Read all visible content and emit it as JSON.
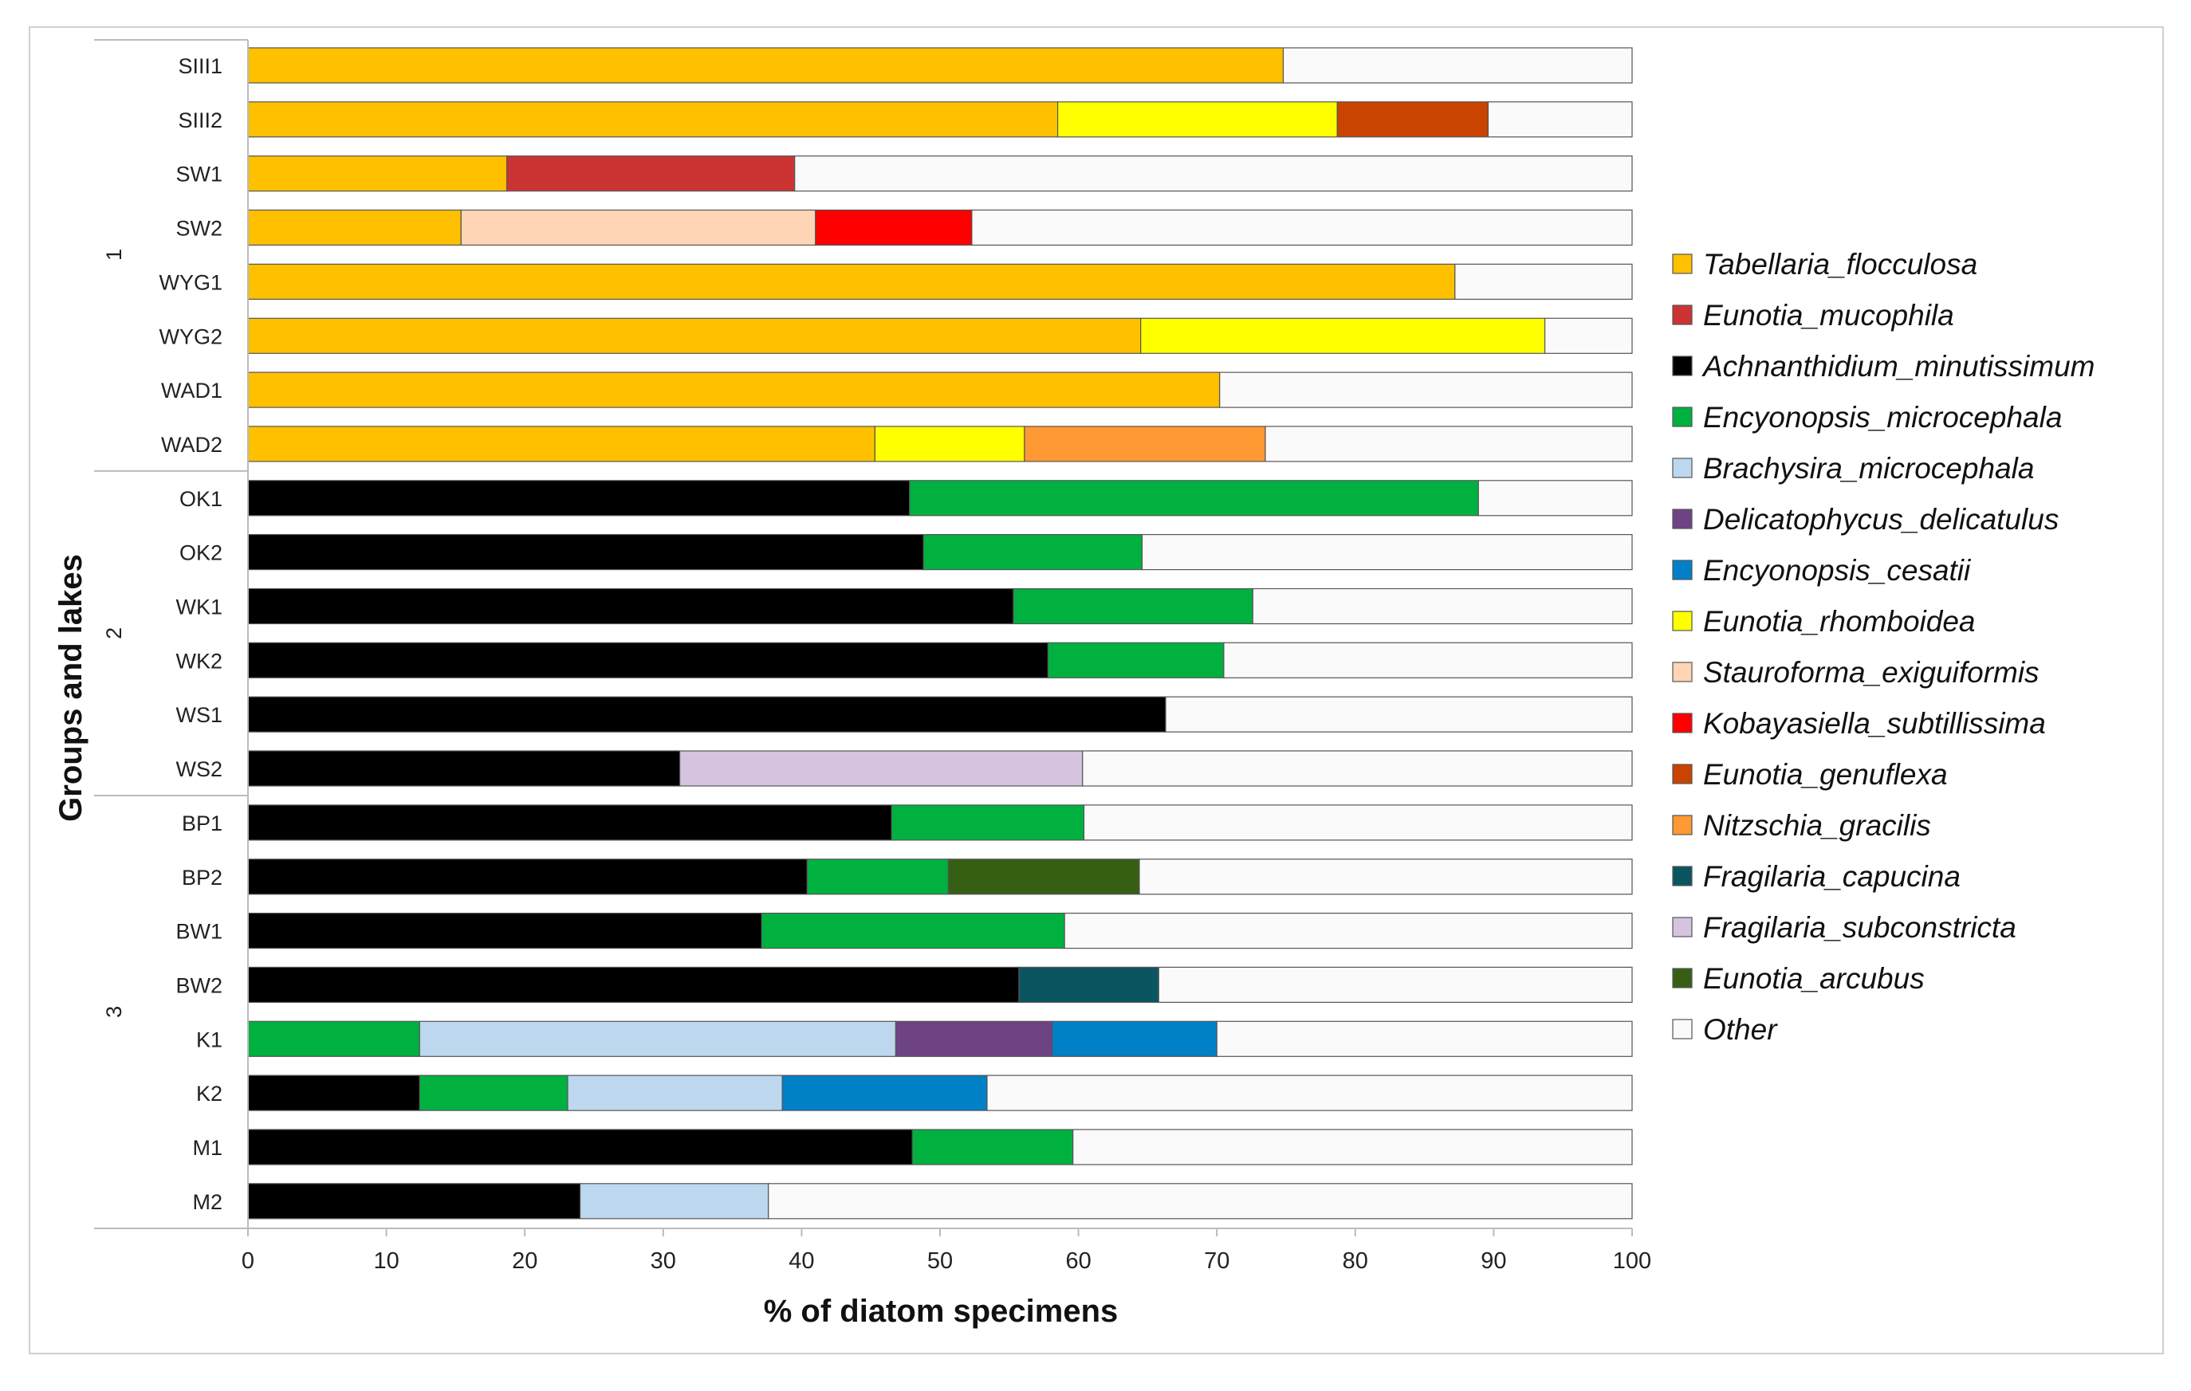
{
  "chart_data": {
    "type": "bar",
    "orientation": "horizontal",
    "stacked": true,
    "xlabel": "% of diatom specimens",
    "ylabel": "Groups and lakes",
    "xlim": [
      0,
      100
    ],
    "xticks": [
      "0",
      "10",
      "20",
      "30",
      "40",
      "50",
      "60",
      "70",
      "80",
      "90",
      "100"
    ],
    "grid": false,
    "legend_position": "right",
    "groups": [
      {
        "name": "1",
        "categories": [
          "SIII1",
          "SIII2",
          "SW1",
          "SW2",
          "WYG1",
          "WYG2",
          "WAD1",
          "WAD2"
        ]
      },
      {
        "name": "2",
        "categories": [
          "OK1",
          "OK2",
          "WK1",
          "WK2",
          "WS1",
          "WS2"
        ]
      },
      {
        "name": "3",
        "categories": [
          "BP1",
          "BP2",
          "BW1",
          "BW2",
          "K1",
          "K2",
          "M1",
          "M2"
        ]
      }
    ],
    "categories": [
      "SIII1",
      "SIII2",
      "SW1",
      "SW2",
      "WYG1",
      "WYG2",
      "WAD1",
      "WAD2",
      "OK1",
      "OK2",
      "WK1",
      "WK2",
      "WS1",
      "WS2",
      "BP1",
      "BP2",
      "BW1",
      "BW2",
      "K1",
      "K2",
      "M1",
      "M2"
    ],
    "series": [
      {
        "name": "Tabellaria_flocculosa",
        "color": "#FFC000",
        "values": [
          74.8,
          58.5,
          18.7,
          15.4,
          87.2,
          64.5,
          70.2,
          45.3,
          0,
          0,
          0,
          0,
          0,
          0,
          0,
          0,
          0,
          0,
          0,
          0,
          0,
          0
        ]
      },
      {
        "name": "Eunotia_mucophila",
        "color": "#CC3333",
        "values": [
          0,
          0,
          20.8,
          0,
          0,
          0,
          0,
          0,
          0,
          0,
          0,
          0,
          0,
          0,
          0,
          0,
          0,
          0,
          0,
          0,
          0,
          0
        ]
      },
      {
        "name": "Achnanthidium_minutissimum",
        "color": "#000000",
        "values": [
          0,
          0,
          0,
          0,
          0,
          0,
          0,
          0,
          47.8,
          48.8,
          55.3,
          57.8,
          66.3,
          31.2,
          46.5,
          40.4,
          37.1,
          55.7,
          0,
          12.4,
          48.0,
          24.0
        ]
      },
      {
        "name": "Encyonopsis_microcephala",
        "color": "#00B140",
        "values": [
          0,
          0,
          0,
          0,
          0,
          0,
          0,
          0,
          41.1,
          15.8,
          17.3,
          12.7,
          0,
          0,
          13.9,
          10.2,
          21.9,
          0,
          12.4,
          10.7,
          11.6,
          0
        ]
      },
      {
        "name": "Brachysira_microcephala",
        "color": "#BDD7EE",
        "values": [
          0,
          0,
          0,
          0,
          0,
          0,
          0,
          0,
          0,
          0,
          0,
          0,
          0,
          0,
          0,
          0,
          0,
          0,
          34.4,
          15.5,
          0,
          13.6
        ]
      },
      {
        "name": "Delicatophycus_delicatulus",
        "color": "#6E4383",
        "values": [
          0,
          0,
          0,
          0,
          0,
          0,
          0,
          0,
          0,
          0,
          0,
          0,
          0,
          0,
          0,
          0,
          0,
          0,
          11.3,
          0,
          0,
          0
        ]
      },
      {
        "name": "Encyonopsis_cesatii",
        "color": "#0080C6",
        "values": [
          0,
          0,
          0,
          0,
          0,
          0,
          0,
          0,
          0,
          0,
          0,
          0,
          0,
          0,
          0,
          0,
          0,
          0,
          11.9,
          14.8,
          0,
          0
        ]
      },
      {
        "name": "Eunotia_rhomboidea",
        "color": "#FFFF00",
        "values": [
          0,
          20.2,
          0,
          0,
          0,
          29.2,
          0,
          10.8,
          0,
          0,
          0,
          0,
          0,
          0,
          0,
          0,
          0,
          0,
          0,
          0,
          0,
          0
        ]
      },
      {
        "name": "Stauroforma_exiguiformis",
        "color": "#FFD5B5",
        "values": [
          0,
          0,
          0,
          25.6,
          0,
          0,
          0,
          0,
          0,
          0,
          0,
          0,
          0,
          0,
          0,
          0,
          0,
          0,
          0,
          0,
          0,
          0
        ]
      },
      {
        "name": "Kobayasiella_subtillissima",
        "color": "#FF0000",
        "values": [
          0,
          0,
          0,
          11.3,
          0,
          0,
          0,
          0,
          0,
          0,
          0,
          0,
          0,
          0,
          0,
          0,
          0,
          0,
          0,
          0,
          0,
          0
        ]
      },
      {
        "name": "Eunotia_genuflexa",
        "color": "#C84400",
        "values": [
          0,
          10.9,
          0,
          0,
          0,
          0,
          0,
          0,
          0,
          0,
          0,
          0,
          0,
          0,
          0,
          0,
          0,
          0,
          0,
          0,
          0,
          0
        ]
      },
      {
        "name": "Nitzschia_gracilis",
        "color": "#FF9933",
        "values": [
          0,
          0,
          0,
          0,
          0,
          0,
          0,
          17.4,
          0,
          0,
          0,
          0,
          0,
          0,
          0,
          0,
          0,
          0,
          0,
          0,
          0,
          0
        ]
      },
      {
        "name": "Fragilaria_capucina",
        "color": "#0B5560",
        "values": [
          0,
          0,
          0,
          0,
          0,
          0,
          0,
          0,
          0,
          0,
          0,
          0,
          0,
          0,
          0,
          0,
          0,
          10.1,
          0,
          0,
          0,
          0
        ]
      },
      {
        "name": "Fragilaria_subconstricta",
        "color": "#D5C3DF",
        "values": [
          0,
          0,
          0,
          0,
          0,
          0,
          0,
          0,
          0,
          0,
          0,
          0,
          0,
          29.1,
          0,
          0,
          0,
          0,
          0,
          0,
          0,
          0
        ]
      },
      {
        "name": "Eunotia_arcubus",
        "color": "#375F14",
        "values": [
          0,
          0,
          0,
          0,
          0,
          0,
          0,
          0,
          0,
          0,
          0,
          0,
          0,
          0,
          0,
          13.8,
          0,
          0,
          0,
          0,
          0,
          0
        ]
      },
      {
        "name": "Other",
        "color": "#FAFAFA",
        "values": [
          25.2,
          10.4,
          60.5,
          47.7,
          12.8,
          6.3,
          29.8,
          26.5,
          11.1,
          35.4,
          27.4,
          29.5,
          33.7,
          39.7,
          39.6,
          35.6,
          41.0,
          34.2,
          30.0,
          46.6,
          40.4,
          62.4
        ]
      }
    ],
    "segment_order": [
      [
        0,
        15
      ],
      [
        0,
        7,
        10,
        15
      ],
      [
        0,
        1,
        15
      ],
      [
        0,
        8,
        9,
        15
      ],
      [
        0,
        15
      ],
      [
        0,
        7,
        15
      ],
      [
        0,
        15
      ],
      [
        0,
        7,
        11,
        15
      ],
      [
        2,
        3,
        15
      ],
      [
        2,
        3,
        15
      ],
      [
        2,
        3,
        15
      ],
      [
        2,
        3,
        15
      ],
      [
        2,
        15
      ],
      [
        2,
        13,
        15
      ],
      [
        2,
        3,
        15
      ],
      [
        2,
        3,
        14,
        15
      ],
      [
        2,
        3,
        15
      ],
      [
        2,
        12,
        15
      ],
      [
        3,
        4,
        5,
        6,
        15
      ],
      [
        2,
        3,
        4,
        6,
        15
      ],
      [
        2,
        3,
        15
      ],
      [
        2,
        4,
        15
      ]
    ]
  }
}
